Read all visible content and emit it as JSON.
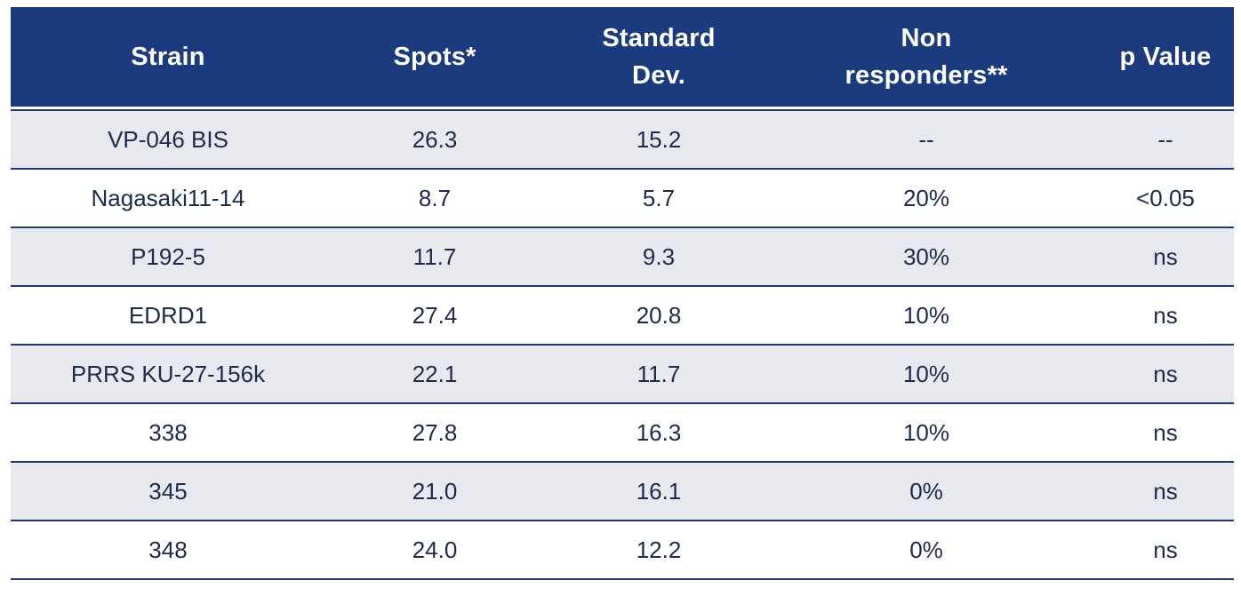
{
  "table": {
    "headers": [
      {
        "line1": "Strain",
        "line2": ""
      },
      {
        "line1": "Spots*",
        "line2": ""
      },
      {
        "line1": "Standard",
        "line2": "Dev."
      },
      {
        "line1": "Non",
        "line2": "responders**"
      },
      {
        "line1": "p Value",
        "line2": ""
      }
    ],
    "rows": [
      [
        "VP-046 BIS",
        "26.3",
        "15.2",
        "--",
        "--"
      ],
      [
        "Nagasaki11-14",
        "8.7",
        "5.7",
        "20%",
        "<0.05"
      ],
      [
        "P192-5",
        "11.7",
        "9.3",
        "30%",
        "ns"
      ],
      [
        "EDRD1",
        "27.4",
        "20.8",
        "10%",
        "ns"
      ],
      [
        "PRRS KU-27-156k",
        "22.1",
        "11.7",
        "10%",
        "ns"
      ],
      [
        "338",
        "27.8",
        "16.3",
        "10%",
        "ns"
      ],
      [
        "345",
        "21.0",
        "16.1",
        "0%",
        "ns"
      ],
      [
        "348",
        "24.0",
        "12.2",
        "0%",
        "ns"
      ]
    ]
  },
  "colors": {
    "header_bg": "#1b3b7e",
    "header_text": "#ffffff",
    "row_shaded": "#e8e9ee",
    "row_plain": "#ffffff",
    "body_text": "#1d2a4d",
    "rule": "#1b3b7e"
  }
}
